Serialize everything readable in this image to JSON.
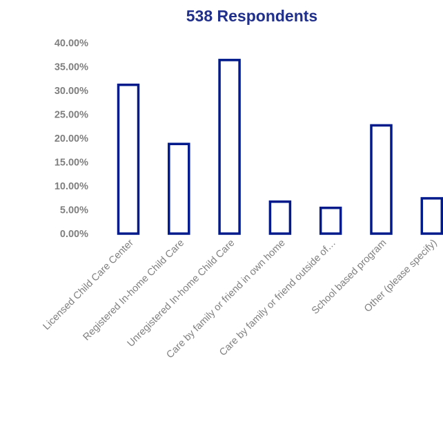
{
  "chart_data": {
    "type": "bar",
    "title": "538 Respondents",
    "categories": [
      "Licensed Child Care Center",
      "Registered In-home Child Care",
      "Unregistered In-home Child Care",
      "Care by family or friend in own home",
      "Care by family or friend outside of…",
      "School based program",
      "Other (please specify)"
    ],
    "values": [
      31.2,
      18.8,
      36.4,
      6.7,
      5.4,
      22.7,
      7.4
    ],
    "ylim": [
      0,
      40
    ],
    "yticks": [
      "0.00%",
      "5.00%",
      "10.00%",
      "15.00%",
      "20.00%",
      "25.00%",
      "30.00%",
      "35.00%",
      "40.00%"
    ],
    "grid": false,
    "legend": "none",
    "colors": {
      "bar_outline": "#001a8c",
      "bar_fill": "#ffffff",
      "title": "#1f2f8a",
      "axis_text": "#7f7f7f"
    }
  }
}
